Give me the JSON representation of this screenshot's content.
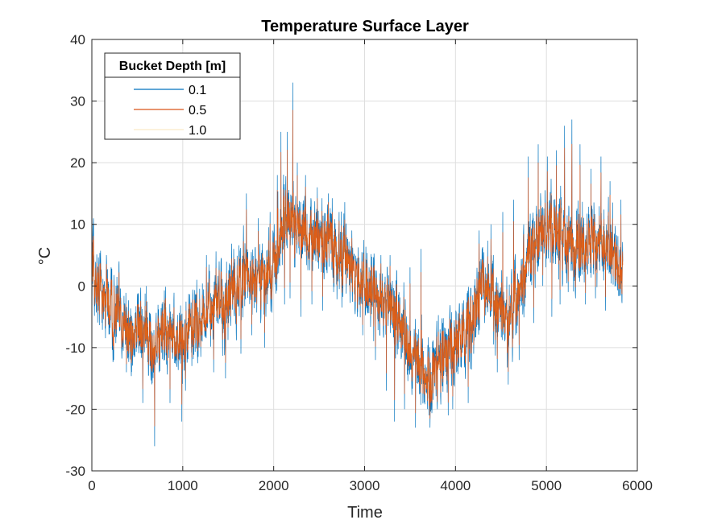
{
  "chart_data": {
    "type": "line",
    "title": "Temperature Surface Layer",
    "xlabel": "Time",
    "ylabel": "°C",
    "xlim": [
      0,
      6000
    ],
    "ylim": [
      -30,
      40
    ],
    "xticks": [
      "0",
      "1000",
      "2000",
      "3000",
      "4000",
      "5000",
      "6000"
    ],
    "yticks": [
      "-30",
      "-20",
      "-10",
      "0",
      "10",
      "20",
      "30",
      "40"
    ],
    "grid": true,
    "legend": {
      "title": "Bucket Depth [m]",
      "placement": "top-left"
    },
    "series": [
      {
        "name": "0.1",
        "color": "#0072BD",
        "x": [
          0,
          100,
          200,
          300,
          400,
          500,
          600,
          700,
          800,
          900,
          1000,
          1100,
          1200,
          1300,
          1400,
          1500,
          1600,
          1700,
          1800,
          1900,
          2000,
          2100,
          2200,
          2300,
          2400,
          2500,
          2600,
          2700,
          2800,
          2900,
          3000,
          3100,
          3200,
          3300,
          3400,
          3500,
          3600,
          3700,
          3800,
          3900,
          4000,
          4100,
          4200,
          4300,
          4400,
          4500,
          4600,
          4700,
          4800,
          4900,
          5000,
          5100,
          5200,
          5300,
          5400,
          5500,
          5600,
          5700,
          5800
        ],
        "y": [
          2,
          -1,
          -3,
          -5,
          -8,
          -7,
          -8,
          -10,
          -6,
          -9,
          -8,
          -6,
          -6,
          -4,
          -3,
          -2,
          0,
          2,
          0,
          2,
          3,
          10,
          11,
          9,
          8,
          7,
          8,
          5,
          4,
          2,
          0,
          -1,
          -2,
          -4,
          -6,
          -10,
          -12,
          -16,
          -14,
          -11,
          -9,
          -7,
          -4,
          0,
          -2,
          -4,
          -6,
          0,
          4,
          8,
          9,
          10,
          8,
          7,
          6,
          7,
          8,
          6,
          2
        ],
        "spikes": {
          "x": [
            10,
            70,
            160,
            240,
            300,
            380,
            470,
            560,
            640,
            690,
            740,
            800,
            860,
            920,
            990,
            1030,
            1100,
            1180,
            1260,
            1340,
            1400,
            1470,
            1560,
            1640,
            1700,
            1760,
            1830,
            1900,
            1960,
            2040,
            2080,
            2120,
            2150,
            2180,
            2210,
            2230,
            2260,
            2300,
            2350,
            2420,
            2480,
            2540,
            2600,
            2660,
            2720,
            2790,
            2860,
            2920,
            2980,
            3050,
            3120,
            3180,
            3240,
            3280,
            3330,
            3380,
            3440,
            3500,
            3560,
            3620,
            3670,
            3720,
            3760,
            3800,
            3860,
            3920,
            3970,
            4010,
            4080,
            4140,
            4200,
            4260,
            4320,
            4390,
            4460,
            4520,
            4580,
            4640,
            4700,
            4750,
            4800,
            4860,
            4910,
            4960,
            5010,
            5060,
            5110,
            5150,
            5200,
            5240,
            5280,
            5320,
            5370,
            5430,
            5490,
            5540,
            5600,
            5650,
            5700,
            5760,
            5820
          ],
          "y": [
            8,
            -4,
            5,
            -12,
            4,
            -14,
            -10,
            -19,
            -13,
            -26,
            -14,
            -12,
            -19,
            -10,
            -22,
            -17,
            -13,
            -10,
            5,
            -14,
            4,
            -15,
            6,
            -11,
            15,
            -8,
            11,
            -10,
            12,
            18,
            25,
            -3,
            25,
            -2,
            33,
            3,
            20,
            -5,
            18,
            -3,
            16,
            -4,
            15,
            -1,
            12,
            3,
            9,
            -5,
            -8,
            3,
            -12,
            5,
            -17,
            5,
            -22,
            -4,
            -20,
            3,
            -23,
            6,
            -16,
            -23,
            -10,
            -20,
            -6,
            -21,
            -20,
            -14,
            -10,
            -19,
            -11,
            9,
            -6,
            10,
            -14,
            12,
            -16,
            14,
            -12,
            10,
            21,
            -6,
            23,
            0,
            21,
            -5,
            22,
            -3,
            26,
            -1,
            27,
            -2,
            23,
            -3,
            19,
            -2,
            21,
            -4,
            17,
            0,
            14
          ]
        }
      },
      {
        "name": "0.5",
        "color": "#D95319",
        "x": [
          0,
          100,
          200,
          300,
          400,
          500,
          600,
          700,
          800,
          900,
          1000,
          1100,
          1200,
          1300,
          1400,
          1500,
          1600,
          1700,
          1800,
          1900,
          2000,
          2100,
          2200,
          2300,
          2400,
          2500,
          2600,
          2700,
          2800,
          2900,
          3000,
          3100,
          3200,
          3300,
          3400,
          3500,
          3600,
          3700,
          3800,
          3900,
          4000,
          4100,
          4200,
          4300,
          4400,
          4500,
          4600,
          4700,
          4800,
          4900,
          5000,
          5100,
          5200,
          5300,
          5400,
          5500,
          5600,
          5700,
          5800
        ],
        "y": [
          2,
          -1,
          -3,
          -5,
          -8,
          -7,
          -8,
          -10,
          -6,
          -9,
          -8,
          -6,
          -6,
          -4,
          -3,
          -2,
          0,
          2,
          0,
          2,
          3,
          10,
          11,
          9,
          8,
          7,
          8,
          5,
          4,
          2,
          0,
          -1,
          -2,
          -4,
          -6,
          -10,
          -12,
          -16,
          -14,
          -11,
          -9,
          -7,
          -4,
          0,
          -2,
          -4,
          -6,
          0,
          4,
          8,
          9,
          10,
          8,
          7,
          6,
          7,
          8,
          6,
          2
        ],
        "amplitude": 0.7
      },
      {
        "name": "1.0",
        "color": "#EDB120",
        "x": [
          0,
          100,
          200,
          300,
          400,
          500,
          600,
          700,
          800,
          900,
          1000,
          1100,
          1200,
          1300,
          1400,
          1500,
          1600,
          1700,
          1800,
          1900,
          2000,
          2100,
          2200,
          2300,
          2400,
          2500,
          2600,
          2700,
          2800,
          2900,
          3000,
          3100,
          3200,
          3300,
          3400,
          3500,
          3600,
          3700,
          3800,
          3900,
          4000,
          4100,
          4200,
          4300,
          4400,
          4500,
          4600,
          4700,
          4800,
          4900,
          5000,
          5100,
          5200,
          5300,
          5400,
          5500,
          5600,
          5700,
          5800
        ],
        "y": [
          2,
          -1,
          -3,
          -5,
          -8,
          -7,
          -8,
          -10,
          -6,
          -9,
          -8,
          -6,
          -6,
          -4,
          -3,
          -2,
          0,
          2,
          0,
          2,
          3,
          10,
          11,
          9,
          8,
          7,
          8,
          5,
          4,
          2,
          0,
          -1,
          -2,
          -4,
          -6,
          -10,
          -12,
          -16,
          -14,
          -11,
          -9,
          -7,
          -4,
          0,
          -2,
          -4,
          -6,
          0,
          4,
          8,
          9,
          10,
          8,
          7,
          6,
          7,
          8,
          6,
          2
        ],
        "amplitude": 0.5
      }
    ]
  }
}
